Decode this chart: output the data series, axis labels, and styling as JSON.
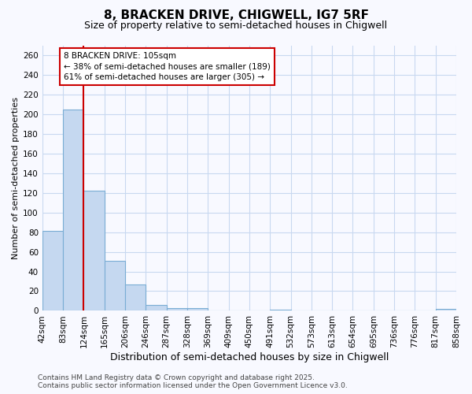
{
  "title": "8, BRACKEN DRIVE, CHIGWELL, IG7 5RF",
  "subtitle": "Size of property relative to semi-detached houses in Chigwell",
  "xlabel": "Distribution of semi-detached houses by size in Chigwell",
  "ylabel": "Number of semi-detached properties",
  "bin_labels": [
    "42sqm",
    "83sqm",
    "124sqm",
    "165sqm",
    "206sqm",
    "246sqm",
    "287sqm",
    "328sqm",
    "369sqm",
    "409sqm",
    "450sqm",
    "491sqm",
    "532sqm",
    "573sqm",
    "613sqm",
    "654sqm",
    "695sqm",
    "736sqm",
    "776sqm",
    "817sqm",
    "858sqm"
  ],
  "values": [
    81,
    205,
    122,
    51,
    27,
    6,
    3,
    3,
    0,
    0,
    0,
    1,
    0,
    0,
    0,
    0,
    0,
    0,
    0,
    2
  ],
  "bar_color": "#c5d8f0",
  "bar_edge_color": "#7aadd4",
  "vline_color": "#cc0000",
  "vline_x_index": 1.5,
  "annotation_text": "8 BRACKEN DRIVE: 105sqm\n← 38% of semi-detached houses are smaller (189)\n61% of semi-detached houses are larger (305) →",
  "annotation_box_facecolor": "#ffffff",
  "annotation_box_edgecolor": "#cc0000",
  "footer_text": "Contains HM Land Registry data © Crown copyright and database right 2025.\nContains public sector information licensed under the Open Government Licence v3.0.",
  "ylim": [
    0,
    270
  ],
  "ytick_step": 20,
  "background_color": "#f8f9ff",
  "grid_color": "#c8d8f0",
  "title_fontsize": 11,
  "subtitle_fontsize": 9,
  "ylabel_fontsize": 8,
  "xlabel_fontsize": 9,
  "tick_fontsize": 7.5,
  "footer_fontsize": 6.5,
  "annotation_fontsize": 7.5
}
